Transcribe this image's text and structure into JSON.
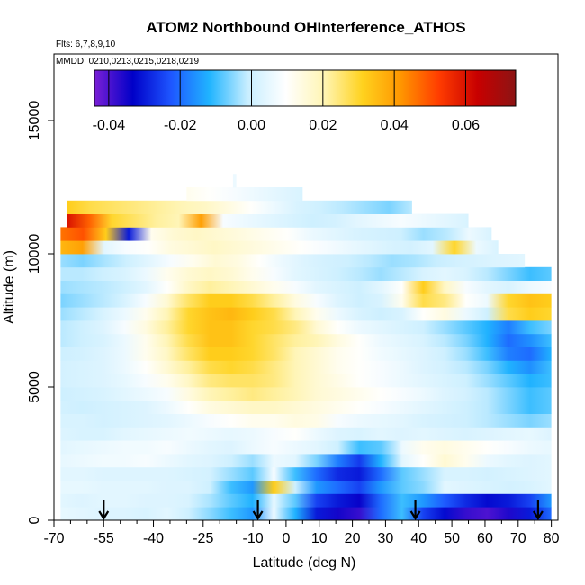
{
  "chart_data": {
    "type": "heatmap",
    "title": "ATOM2 Northbound OHInterference_ATHOS",
    "flights_label": "Flts: 6,7,8,9,10",
    "dates_label": "MMDD: 0210,0213,0215,0218,0219",
    "xlabel": "Latitude (deg N)",
    "ylabel": "Altitude (m)",
    "xlim": [
      -70,
      82
    ],
    "ylim": [
      0,
      17500
    ],
    "x_ticks": [
      -70,
      -55,
      -40,
      -25,
      -10,
      0,
      10,
      20,
      30,
      40,
      50,
      60,
      70,
      80
    ],
    "x_tick_labels": [
      "-70",
      "-55",
      "-40",
      "-25",
      "-10",
      "0",
      "10",
      "20",
      "30",
      "40",
      "50",
      "60",
      "70",
      "80"
    ],
    "x_minor_ticks": [
      -65,
      -60,
      -50,
      -45,
      -35,
      -30,
      -20,
      -15,
      -5,
      5,
      15,
      25,
      35,
      45,
      55,
      65,
      75
    ],
    "y_ticks": [
      0,
      5000,
      10000,
      15000
    ],
    "y_tick_labels": [
      "0",
      "5000",
      "10000",
      "15000"
    ],
    "colorbar": {
      "range": [
        -0.044,
        0.074
      ],
      "ticks": [
        -0.04,
        -0.02,
        0.0,
        0.02,
        0.04,
        0.06
      ],
      "tick_labels": [
        "-0.04",
        "-0.02",
        "0.00",
        "0.02",
        "0.04",
        "0.06"
      ],
      "colors": [
        "#7a1fd6",
        "#0000c8",
        "#1e56ff",
        "#20b4ff",
        "#c8eeff",
        "#ffffff",
        "#fff5b4",
        "#ffd21e",
        "#ff9600",
        "#ff3c00",
        "#c80000",
        "#8c1414"
      ]
    },
    "bin_height_m": 500,
    "arrows_lat": [
      -55,
      -8.5,
      39,
      76
    ],
    "layers": [
      {
        "alt": 250,
        "lat_min": -68,
        "lat_max": 80,
        "values": [
          0.005,
          0.004,
          0.003,
          0.003,
          0.002,
          0.004,
          0.0,
          -0.005,
          -0.01,
          -0.015,
          0.006,
          -0.012,
          -0.03,
          -0.035,
          -0.038,
          -0.02,
          -0.01,
          -0.025,
          -0.032,
          -0.038,
          -0.04,
          -0.036,
          -0.03,
          -0.02
        ]
      },
      {
        "alt": 750,
        "lat_min": -68,
        "lat_max": 80,
        "values": [
          0.004,
          0.003,
          0.004,
          0.004,
          0.003,
          0.003,
          0.002,
          -0.003,
          -0.008,
          -0.012,
          0.005,
          -0.008,
          -0.025,
          -0.03,
          -0.034,
          -0.02,
          -0.01,
          -0.015,
          -0.022,
          -0.028,
          -0.032,
          -0.03,
          -0.025,
          -0.015
        ]
      },
      {
        "alt": 1250,
        "lat_min": -68,
        "lat_max": 80,
        "values": [
          0.005,
          0.005,
          0.004,
          0.004,
          0.004,
          0.003,
          0.003,
          0.0,
          -0.01,
          -0.015,
          0.032,
          0.0,
          -0.015,
          -0.02,
          -0.025,
          -0.015,
          -0.008,
          -0.005,
          0.004,
          0.003,
          0.002,
          0.001,
          0.002,
          0.004
        ]
      },
      {
        "alt": 1750,
        "lat_min": -68,
        "lat_max": 80,
        "values": [
          0.004,
          0.004,
          0.003,
          0.003,
          0.003,
          0.003,
          0.002,
          0.001,
          -0.004,
          -0.008,
          0.008,
          -0.01,
          -0.02,
          -0.028,
          -0.03,
          -0.02,
          -0.008,
          -0.004,
          0.002,
          0.002,
          0.001,
          0.002,
          0.003,
          0.004
        ]
      },
      {
        "alt": 2250,
        "lat_min": -68,
        "lat_max": 80,
        "values": [
          0.005,
          0.006,
          0.007,
          0.007,
          0.008,
          0.006,
          0.004,
          0.003,
          0.0,
          -0.004,
          0.006,
          0.004,
          -0.006,
          -0.018,
          -0.026,
          -0.012,
          0.004,
          0.01,
          0.016,
          0.012,
          0.006,
          0.004,
          0.003,
          0.004
        ]
      },
      {
        "alt": 2750,
        "lat_min": -68,
        "lat_max": 80,
        "values": [
          0.004,
          0.005,
          0.006,
          0.007,
          0.007,
          0.008,
          0.006,
          0.004,
          0.003,
          0.006,
          0.008,
          0.006,
          0.004,
          0.0,
          -0.01,
          -0.008,
          0.006,
          0.012,
          0.014,
          0.012,
          0.01,
          0.008,
          0.006,
          0.005
        ]
      },
      {
        "alt": 3250,
        "lat_min": -68,
        "lat_max": 80,
        "values": [
          0.003,
          0.002,
          0.002,
          0.004,
          0.005,
          0.006,
          0.007,
          0.006,
          0.005,
          0.006,
          0.008,
          0.01,
          0.006,
          0.003,
          0.002,
          0.004,
          0.003,
          0.004,
          0.003,
          0.002,
          0.003,
          0.004,
          0.005,
          0.003
        ]
      },
      {
        "alt": 3750,
        "lat_min": -68,
        "lat_max": 80,
        "values": [
          0.002,
          0.002,
          0.001,
          0.002,
          0.003,
          0.004,
          0.006,
          0.008,
          0.01,
          0.012,
          0.012,
          0.014,
          0.013,
          0.008,
          0.006,
          0.005,
          0.004,
          0.002,
          0.001,
          0.0,
          -0.002,
          -0.004,
          -0.006,
          -0.004
        ]
      },
      {
        "alt": 4250,
        "lat_min": -68,
        "lat_max": 80,
        "values": [
          0.001,
          0.0,
          0.001,
          0.002,
          0.003,
          0.006,
          0.01,
          0.014,
          0.016,
          0.018,
          0.018,
          0.016,
          0.014,
          0.012,
          0.01,
          0.008,
          0.006,
          0.004,
          0.002,
          0.0,
          -0.002,
          -0.006,
          -0.01,
          -0.008
        ]
      },
      {
        "alt": 4750,
        "lat_min": -68,
        "lat_max": 80,
        "values": [
          0.0,
          0.001,
          0.002,
          0.004,
          0.006,
          0.008,
          0.014,
          0.02,
          0.022,
          0.024,
          0.022,
          0.02,
          0.016,
          0.014,
          0.012,
          0.01,
          0.008,
          0.006,
          0.003,
          0.001,
          -0.002,
          -0.006,
          -0.01,
          -0.008
        ]
      },
      {
        "alt": 5250,
        "lat_min": -68,
        "lat_max": 80,
        "values": [
          0.001,
          0.002,
          0.003,
          0.005,
          0.008,
          0.012,
          0.018,
          0.024,
          0.026,
          0.026,
          0.024,
          0.02,
          0.016,
          0.013,
          0.01,
          0.008,
          0.006,
          0.004,
          0.002,
          0.0,
          -0.004,
          -0.008,
          -0.012,
          -0.01
        ]
      },
      {
        "alt": 5750,
        "lat_min": -68,
        "lat_max": 80,
        "values": [
          0.001,
          0.002,
          0.003,
          0.006,
          0.01,
          0.016,
          0.022,
          0.028,
          0.03,
          0.028,
          0.024,
          0.02,
          0.016,
          0.012,
          0.01,
          0.008,
          0.006,
          0.003,
          0.001,
          -0.002,
          -0.006,
          -0.012,
          -0.016,
          -0.01
        ]
      },
      {
        "alt": 6250,
        "lat_min": -68,
        "lat_max": 80,
        "values": [
          0.0,
          0.001,
          0.003,
          0.006,
          0.012,
          0.018,
          0.026,
          0.032,
          0.032,
          0.03,
          0.026,
          0.02,
          0.016,
          0.012,
          0.01,
          0.007,
          0.005,
          0.003,
          0.0,
          -0.004,
          -0.01,
          -0.018,
          -0.02,
          -0.012
        ]
      },
      {
        "alt": 6750,
        "lat_min": -68,
        "lat_max": 80,
        "values": [
          -0.002,
          0.0,
          0.002,
          0.006,
          0.012,
          0.02,
          0.028,
          0.034,
          0.034,
          0.03,
          0.026,
          0.022,
          0.02,
          0.014,
          0.01,
          0.006,
          0.004,
          0.002,
          -0.002,
          -0.006,
          -0.012,
          -0.02,
          -0.016,
          -0.01
        ]
      },
      {
        "alt": 7250,
        "lat_min": -68,
        "lat_max": 80,
        "values": [
          -0.002,
          0.0,
          0.003,
          0.008,
          0.014,
          0.022,
          0.03,
          0.034,
          0.034,
          0.03,
          0.028,
          0.024,
          0.016,
          0.01,
          0.006,
          0.004,
          0.002,
          0.0,
          -0.004,
          -0.008,
          -0.012,
          -0.018,
          -0.01,
          -0.006
        ]
      },
      {
        "alt": 7750,
        "lat_min": -68,
        "lat_max": 80,
        "values": [
          -0.004,
          -0.002,
          0.002,
          0.006,
          0.012,
          0.02,
          0.03,
          0.034,
          0.036,
          0.032,
          0.028,
          0.02,
          0.012,
          0.006,
          0.002,
          0.0,
          0.002,
          0.01,
          0.014,
          0.006,
          0.0,
          0.028,
          0.032,
          0.03
        ]
      },
      {
        "alt": 8250,
        "lat_min": -68,
        "lat_max": 80,
        "values": [
          -0.006,
          -0.004,
          -0.002,
          0.002,
          0.008,
          0.016,
          0.026,
          0.032,
          0.032,
          0.028,
          0.022,
          0.014,
          0.008,
          0.003,
          0.0,
          0.002,
          0.012,
          0.028,
          0.024,
          0.01,
          0.006,
          0.03,
          0.034,
          0.032
        ]
      },
      {
        "alt": 8750,
        "lat_min": -68,
        "lat_max": 80,
        "values": [
          -0.004,
          -0.003,
          -0.002,
          0.0,
          0.004,
          0.01,
          0.018,
          0.022,
          0.02,
          0.016,
          0.012,
          0.008,
          0.004,
          0.002,
          0.0,
          0.004,
          0.01,
          0.032,
          0.018,
          0.008,
          0.004,
          0.002,
          0.006,
          0.008
        ]
      },
      {
        "alt": 9250,
        "lat_min": -68,
        "lat_max": 80,
        "values": [
          -0.002,
          -0.002,
          0.0,
          0.002,
          0.006,
          0.012,
          0.016,
          0.018,
          0.016,
          0.012,
          0.008,
          0.004,
          0.002,
          0.0,
          -0.002,
          -0.004,
          -0.002,
          0.002,
          0.004,
          0.002,
          -0.002,
          -0.006,
          -0.01,
          -0.008
        ]
      },
      {
        "alt": 9750,
        "lat_min": -68,
        "lat_max": 72,
        "values": [
          -0.004,
          -0.006,
          -0.003,
          0.0,
          0.004,
          0.008,
          0.012,
          0.016,
          0.014,
          0.01,
          0.006,
          0.003,
          0.001,
          0.0,
          -0.002,
          -0.004,
          -0.003,
          -0.001,
          0.001,
          0.002,
          0.003,
          0.004
        ]
      },
      {
        "alt": 10250,
        "lat_min": -68,
        "lat_max": 64,
        "values": [
          0.036,
          0.04,
          0.004,
          0.008,
          0.01,
          0.014,
          0.016,
          0.018,
          0.016,
          0.014,
          0.012,
          0.01,
          0.008,
          0.006,
          0.004,
          0.002,
          0.001,
          0.004,
          0.03,
          0.006,
          0.002
        ]
      },
      {
        "alt": 10750,
        "lat_min": -68,
        "lat_max": 62,
        "values": [
          0.046,
          0.05,
          0.032,
          -0.03,
          0.012,
          0.016,
          0.018,
          0.016,
          0.014,
          0.012,
          0.01,
          0.006,
          0.004,
          0.002,
          0.001,
          0.0,
          -0.004,
          -0.002,
          0.006,
          0.002
        ]
      },
      {
        "alt": 11250,
        "lat_min": -66,
        "lat_max": 55,
        "values": [
          0.06,
          0.048,
          0.03,
          0.026,
          0.022,
          0.02,
          0.04,
          0.008,
          0.006,
          0.004,
          0.002,
          0.0,
          0.001,
          0.004,
          0.006,
          0.008,
          0.006,
          0.004,
          0.002
        ]
      },
      {
        "alt": 11750,
        "lat_min": -66,
        "lat_max": 38,
        "values": [
          0.032,
          0.028,
          0.026,
          0.024,
          0.022,
          0.02,
          0.018,
          0.014,
          0.01,
          0.006,
          0.002,
          0.0,
          -0.002,
          -0.004,
          -0.006,
          -0.002
        ]
      },
      {
        "alt": 12250,
        "lat_min": -30,
        "lat_max": 5,
        "values": [
          0.012,
          0.01,
          0.008,
          0.006,
          0.004,
          0.002
        ]
      },
      {
        "alt": 12750,
        "lat_min": -16,
        "lat_max": -15,
        "values": [
          0.006
        ]
      }
    ]
  }
}
